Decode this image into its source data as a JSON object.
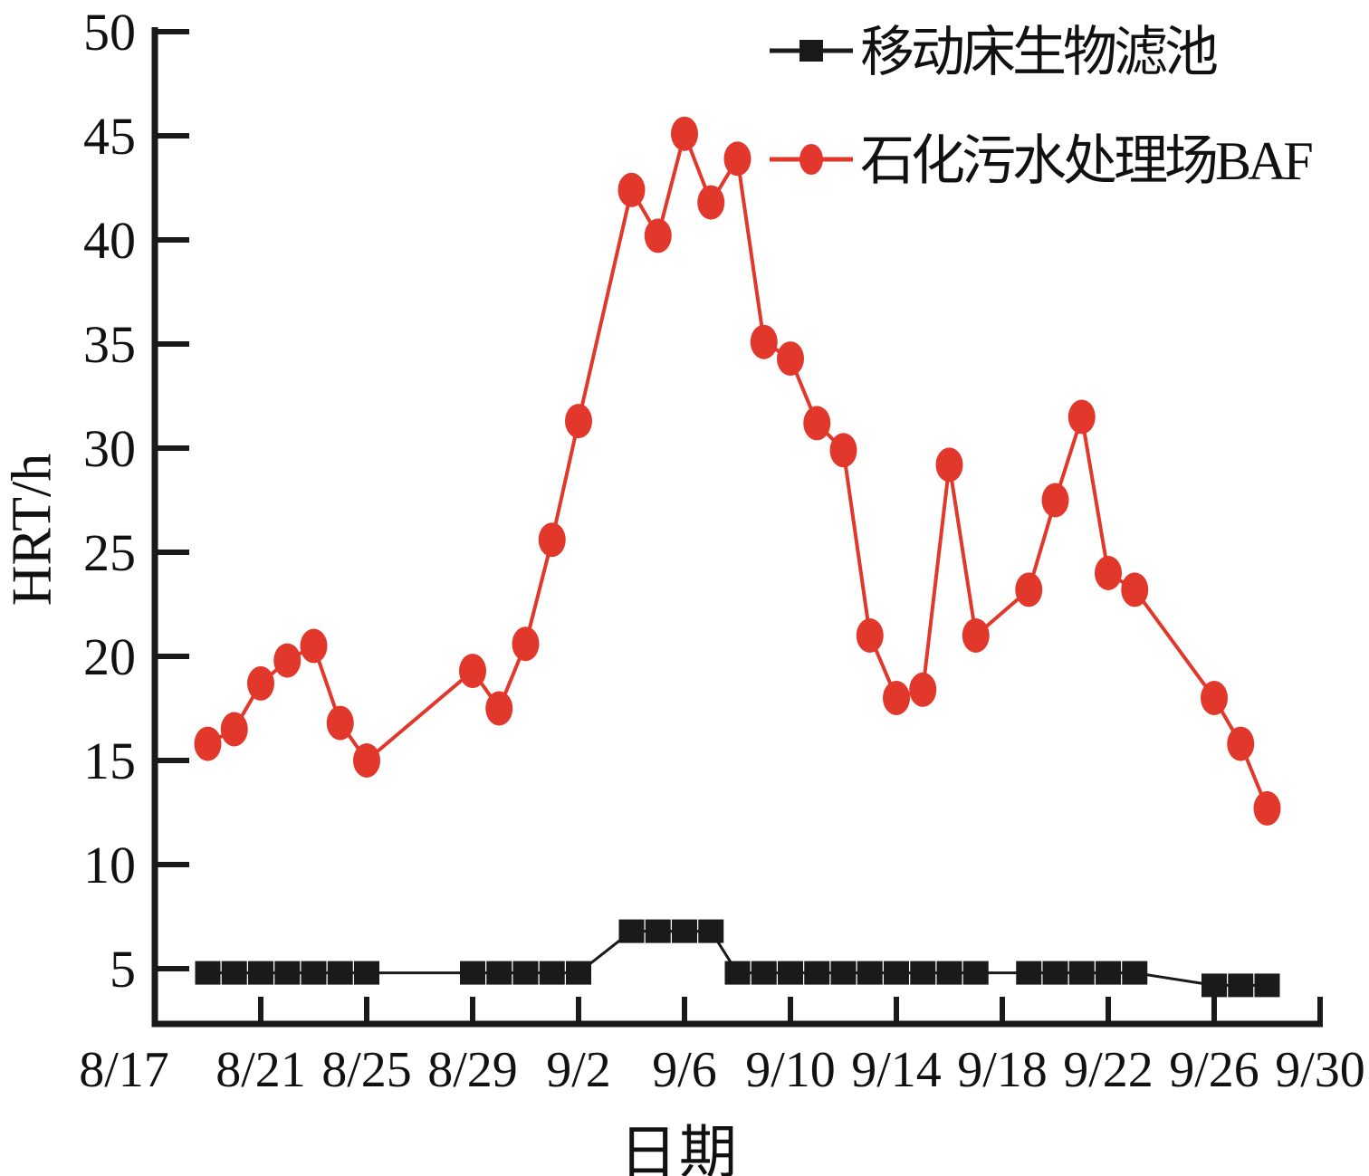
{
  "figure": {
    "background": "#ffffff",
    "axis_color": "#1a1a1a",
    "series1_color": "#1a1a1a",
    "series2_color": "#e2382b"
  },
  "chart_data": {
    "type": "line",
    "title": "",
    "xlabel": "日期",
    "ylabel": "HRT/h",
    "legend_position": "top-right",
    "grid": false,
    "ylim": [
      2.3,
      50
    ],
    "y_ticks": [
      5,
      10,
      15,
      20,
      25,
      30,
      35,
      40,
      45,
      50
    ],
    "x_range_days": [
      0,
      44
    ],
    "x_ticks": [
      {
        "label": "8/17",
        "day": 0
      },
      {
        "label": "8/21",
        "day": 4
      },
      {
        "label": "8/25",
        "day": 8
      },
      {
        "label": "8/29",
        "day": 12
      },
      {
        "label": "9/2",
        "day": 16
      },
      {
        "label": "9/6",
        "day": 20
      },
      {
        "label": "9/10",
        "day": 24
      },
      {
        "label": "9/14",
        "day": 28
      },
      {
        "label": "9/18",
        "day": 32
      },
      {
        "label": "9/22",
        "day": 36
      },
      {
        "label": "9/26",
        "day": 40
      },
      {
        "label": "9/30",
        "day": 44
      }
    ],
    "series": [
      {
        "name": "移动床生物滤池",
        "color": "#1a1a1a",
        "marker": "square",
        "line_width": 3,
        "points": [
          {
            "date": "8/19",
            "day": 2,
            "value": 4.8
          },
          {
            "date": "8/20",
            "day": 3,
            "value": 4.8
          },
          {
            "date": "8/21",
            "day": 4,
            "value": 4.8
          },
          {
            "date": "8/22",
            "day": 5,
            "value": 4.8
          },
          {
            "date": "8/23",
            "day": 6,
            "value": 4.8
          },
          {
            "date": "8/24",
            "day": 7,
            "value": 4.8
          },
          {
            "date": "8/25",
            "day": 8,
            "value": 4.8
          },
          {
            "date": "8/29",
            "day": 12,
            "value": 4.8
          },
          {
            "date": "8/30",
            "day": 13,
            "value": 4.8
          },
          {
            "date": "8/31",
            "day": 14,
            "value": 4.8
          },
          {
            "date": "9/1",
            "day": 15,
            "value": 4.8
          },
          {
            "date": "9/2",
            "day": 16,
            "value": 4.8
          },
          {
            "date": "9/4",
            "day": 18,
            "value": 6.8
          },
          {
            "date": "9/5",
            "day": 19,
            "value": 6.8
          },
          {
            "date": "9/6",
            "day": 20,
            "value": 6.8
          },
          {
            "date": "9/7",
            "day": 21,
            "value": 6.8
          },
          {
            "date": "9/8",
            "day": 22,
            "value": 4.8
          },
          {
            "date": "9/9",
            "day": 23,
            "value": 4.8
          },
          {
            "date": "9/10",
            "day": 24,
            "value": 4.8
          },
          {
            "date": "9/11",
            "day": 25,
            "value": 4.8
          },
          {
            "date": "9/12",
            "day": 26,
            "value": 4.8
          },
          {
            "date": "9/13",
            "day": 27,
            "value": 4.8
          },
          {
            "date": "9/14",
            "day": 28,
            "value": 4.8
          },
          {
            "date": "9/15",
            "day": 29,
            "value": 4.8
          },
          {
            "date": "9/16",
            "day": 30,
            "value": 4.8
          },
          {
            "date": "9/17",
            "day": 31,
            "value": 4.8
          },
          {
            "date": "9/19",
            "day": 33,
            "value": 4.8
          },
          {
            "date": "9/20",
            "day": 34,
            "value": 4.8
          },
          {
            "date": "9/21",
            "day": 35,
            "value": 4.8
          },
          {
            "date": "9/22",
            "day": 36,
            "value": 4.8
          },
          {
            "date": "9/23",
            "day": 37,
            "value": 4.8
          },
          {
            "date": "9/26",
            "day": 40,
            "value": 4.2
          },
          {
            "date": "9/27",
            "day": 41,
            "value": 4.2
          },
          {
            "date": "9/28",
            "day": 42,
            "value": 4.2
          }
        ]
      },
      {
        "name": "石化污水处理场BAF",
        "color": "#e2382b",
        "marker": "ellipse",
        "line_width": 4,
        "points": [
          {
            "date": "8/19",
            "day": 2,
            "value": 15.8
          },
          {
            "date": "8/20",
            "day": 3,
            "value": 16.5
          },
          {
            "date": "8/21",
            "day": 4,
            "value": 18.7
          },
          {
            "date": "8/22",
            "day": 5,
            "value": 19.8
          },
          {
            "date": "8/23",
            "day": 6,
            "value": 20.5
          },
          {
            "date": "8/24",
            "day": 7,
            "value": 16.8
          },
          {
            "date": "8/25",
            "day": 8,
            "value": 15.0
          },
          {
            "date": "8/29",
            "day": 12,
            "value": 19.3
          },
          {
            "date": "8/30",
            "day": 13,
            "value": 17.5
          },
          {
            "date": "8/31",
            "day": 14,
            "value": 20.6
          },
          {
            "date": "9/1",
            "day": 15,
            "value": 25.6
          },
          {
            "date": "9/2",
            "day": 16,
            "value": 31.3
          },
          {
            "date": "9/4",
            "day": 18,
            "value": 42.4
          },
          {
            "date": "9/5",
            "day": 19,
            "value": 40.2
          },
          {
            "date": "9/6",
            "day": 20,
            "value": 45.1
          },
          {
            "date": "9/7",
            "day": 21,
            "value": 41.8
          },
          {
            "date": "9/8",
            "day": 22,
            "value": 43.9
          },
          {
            "date": "9/9",
            "day": 23,
            "value": 35.1
          },
          {
            "date": "9/10",
            "day": 24,
            "value": 34.3
          },
          {
            "date": "9/11",
            "day": 25,
            "value": 31.2
          },
          {
            "date": "9/12",
            "day": 26,
            "value": 29.9
          },
          {
            "date": "9/13",
            "day": 27,
            "value": 21.0
          },
          {
            "date": "9/14",
            "day": 28,
            "value": 18.0
          },
          {
            "date": "9/15",
            "day": 29,
            "value": 18.4
          },
          {
            "date": "9/16",
            "day": 30,
            "value": 29.2
          },
          {
            "date": "9/17",
            "day": 31,
            "value": 21.0
          },
          {
            "date": "9/19",
            "day": 33,
            "value": 23.2
          },
          {
            "date": "9/20",
            "day": 34,
            "value": 27.5
          },
          {
            "date": "9/21",
            "day": 35,
            "value": 31.5
          },
          {
            "date": "9/22",
            "day": 36,
            "value": 24.0
          },
          {
            "date": "9/23",
            "day": 37,
            "value": 23.2
          },
          {
            "date": "9/26",
            "day": 40,
            "value": 18.0
          },
          {
            "date": "9/27",
            "day": 41,
            "value": 15.8
          },
          {
            "date": "9/28",
            "day": 42,
            "value": 12.7
          }
        ]
      }
    ]
  }
}
